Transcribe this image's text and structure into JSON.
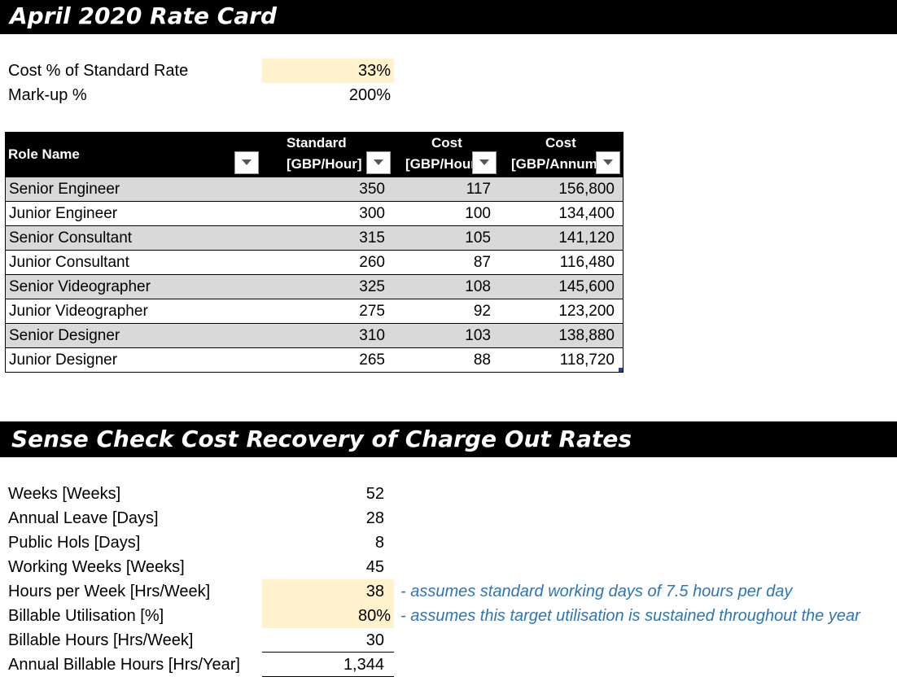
{
  "title": "April 2020 Rate Card",
  "params": {
    "cost_pct_label": "Cost % of Standard Rate",
    "cost_pct_value": "33%",
    "markup_label": "Mark-up %",
    "markup_value": "200%"
  },
  "table": {
    "headers": {
      "role": "Role Name",
      "standard_line1": "Standard",
      "standard_line2": "[GBP/Hour]",
      "cost_hour_line1": "Cost",
      "cost_hour_line2": "[GBP/Hour]",
      "cost_annum_line1": "Cost",
      "cost_annum_line2": "[GBP/Annum]"
    },
    "rows": [
      {
        "role": "Senior Engineer",
        "standard": "350",
        "cost_hour": "117",
        "cost_annum": "156,800"
      },
      {
        "role": "Junior Engineer",
        "standard": "300",
        "cost_hour": "100",
        "cost_annum": "134,400"
      },
      {
        "role": "Senior Consultant",
        "standard": "315",
        "cost_hour": "105",
        "cost_annum": "141,120"
      },
      {
        "role": "Junior Consultant",
        "standard": "260",
        "cost_hour": "87",
        "cost_annum": "116,480"
      },
      {
        "role": "Senior Videographer",
        "standard": "325",
        "cost_hour": "108",
        "cost_annum": "145,600"
      },
      {
        "role": "Junior Videographer",
        "standard": "275",
        "cost_hour": "92",
        "cost_annum": "123,200"
      },
      {
        "role": "Senior Designer",
        "standard": "310",
        "cost_hour": "103",
        "cost_annum": "138,880"
      },
      {
        "role": "Junior Designer",
        "standard": "265",
        "cost_hour": "88",
        "cost_annum": "118,720"
      }
    ]
  },
  "section2_title": "Sense Check Cost Recovery of Charge Out Rates",
  "sense_check": [
    {
      "label": "Weeks [Weeks]",
      "value": "52"
    },
    {
      "label": "Annual Leave [Days]",
      "value": "28"
    },
    {
      "label": "Public Hols [Days]",
      "value": "8"
    },
    {
      "label": "Working Weeks [Weeks]",
      "value": "45"
    },
    {
      "label": "Hours per Week [Hrs/Week]",
      "value": "38",
      "note": "- assumes standard working days of 7.5 hours per day"
    },
    {
      "label": "Billable Utilisation [%]",
      "value": "80%",
      "note": "- assumes this target utilisation is sustained throughout the year"
    },
    {
      "label": "Billable Hours [Hrs/Week]",
      "value": "30"
    },
    {
      "label": "Annual Billable Hours [Hrs/Year]",
      "value": "1,344"
    }
  ],
  "colors": {
    "input_highlight": "#fff2cc",
    "band_row": "#d9d9d9",
    "note_text": "#2e75b6",
    "banner": "#000000"
  },
  "icons": {
    "filter_dropdown": "triangle-down-icon"
  }
}
